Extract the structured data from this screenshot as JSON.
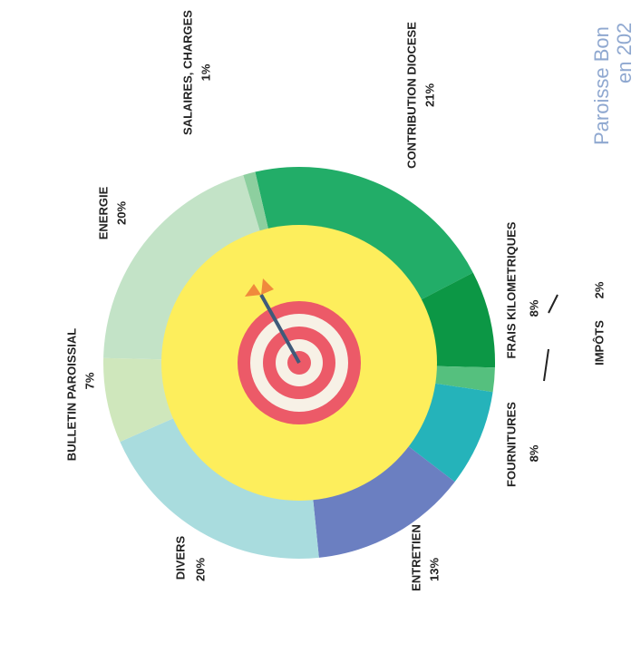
{
  "chart_data": {
    "type": "pie",
    "donut": true,
    "title_lines": [
      "Paroisse Bon",
      "en 202"
    ],
    "categories": [
      "CONTRIBUTION DIOCESE",
      "FRAIS KILOMETRIQUES",
      "IMPÔTS",
      "FOURNITURES",
      "ENTRETIEN",
      "DIVERS",
      "BULLETIN PAROISSIAL",
      "ENERGIE",
      "SALAIRES, CHARGES"
    ],
    "values": [
      21,
      8,
      2,
      8,
      13,
      20,
      7,
      20,
      1
    ],
    "value_labels": [
      "21%",
      "8%",
      "2%",
      "8%",
      "13%",
      "20%",
      "7%",
      "20%",
      "1%"
    ],
    "colors": [
      "#22ad68",
      "#0c9745",
      "#55c07e",
      "#25b3ba",
      "#6b7fc1",
      "#a9dcde",
      "#cfe7bc",
      "#c3e3c7",
      "#8dcf9f"
    ]
  }
}
